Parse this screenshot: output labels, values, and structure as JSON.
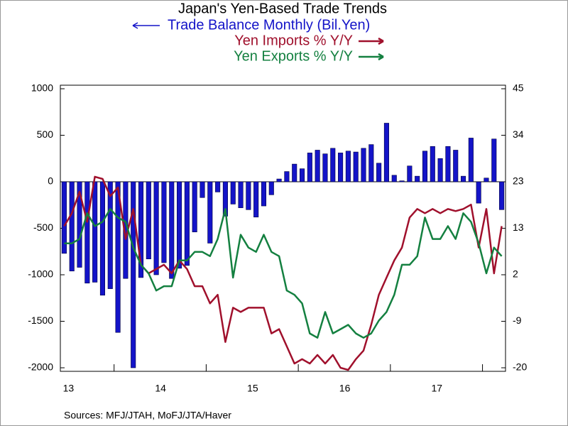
{
  "chart_data": {
    "type": "combo",
    "title": "Japan's Yen-Based Trade Trends",
    "source": "Sources:  MFJ/JTAH, MoFJ/JTA/Haver",
    "categories": [
      "13",
      null,
      null,
      null,
      null,
      null,
      null,
      null,
      null,
      null,
      null,
      null,
      "14",
      null,
      null,
      null,
      null,
      null,
      null,
      null,
      null,
      null,
      null,
      null,
      "15",
      null,
      null,
      null,
      null,
      null,
      null,
      null,
      null,
      null,
      null,
      null,
      "16",
      null,
      null,
      null,
      null,
      null,
      null,
      null,
      null,
      null,
      null,
      null,
      "17",
      null,
      null,
      null,
      null,
      null,
      null,
      null,
      null,
      null
    ],
    "ylim": [
      -2000,
      1000
    ],
    "yticks": [
      -2000,
      -1500,
      -1000,
      -500,
      0,
      500,
      1000
    ],
    "y2lim": [
      -20,
      45
    ],
    "y2ticks": [
      -20,
      {
        "value": -9.17,
        "label": "-9"
      },
      {
        "value": 1.67,
        "label": "2"
      },
      {
        "value": 12.5,
        "label": "13"
      },
      {
        "value": 23.33,
        "label": "23"
      },
      {
        "value": 34.17,
        "label": "34"
      },
      45
    ],
    "series": [
      {
        "name": "Trade Balance Monthly (Bil.Yen)",
        "type": "bar",
        "color": "#1414c8",
        "values": [
          -770,
          -960,
          -920,
          -1090,
          -1080,
          -1220,
          -1150,
          -1620,
          -1040,
          -2000,
          -1030,
          -830,
          -1000,
          -870,
          -1040,
          -930,
          -900,
          -540,
          -170,
          -660,
          -110,
          -370,
          -240,
          -280,
          -300,
          -380,
          -260,
          -140,
          30,
          110,
          190,
          140,
          310,
          340,
          300,
          360,
          310,
          330,
          320,
          360,
          400,
          200,
          630,
          70,
          10,
          170,
          60,
          330,
          380,
          250,
          380,
          340,
          60,
          470,
          -230,
          40,
          460,
          -300
        ]
      },
      {
        "name": "Yen Imports % Y/Y",
        "type": "line",
        "axis": "y2",
        "color": "#a0102c",
        "values": [
          13,
          16,
          21,
          14,
          24.5,
          24,
          20,
          22,
          10,
          17,
          4,
          2,
          3,
          4,
          2,
          5,
          3,
          -1,
          -1,
          -5,
          -3,
          -14,
          -6,
          -7,
          -6,
          -6,
          -6,
          -12,
          -11,
          -15,
          -19,
          -18,
          -19,
          -17,
          -19,
          -17,
          -20,
          -20.5,
          -18,
          -16,
          -10,
          -3,
          1,
          5,
          8,
          15,
          17,
          16,
          17,
          16,
          17,
          16.5,
          17,
          18,
          8,
          17,
          2,
          13
        ]
      },
      {
        "name": "Yen Exports % Y/Y",
        "type": "line",
        "axis": "y2",
        "color": "#148040",
        "values": [
          9,
          9,
          10,
          16,
          13,
          14,
          17,
          15,
          14,
          8,
          4,
          2,
          -2,
          -1,
          -1,
          5,
          5,
          7,
          7,
          6,
          10,
          17,
          1,
          11,
          8,
          7,
          11,
          7,
          6,
          -2,
          -3,
          -5,
          -12,
          -13,
          -7,
          -12,
          -11,
          -10,
          -12,
          -13,
          -12,
          -9,
          -7,
          -3,
          4,
          4,
          6,
          15,
          10,
          10,
          13,
          10,
          16,
          14,
          9,
          2,
          8,
          6
        ]
      }
    ]
  }
}
